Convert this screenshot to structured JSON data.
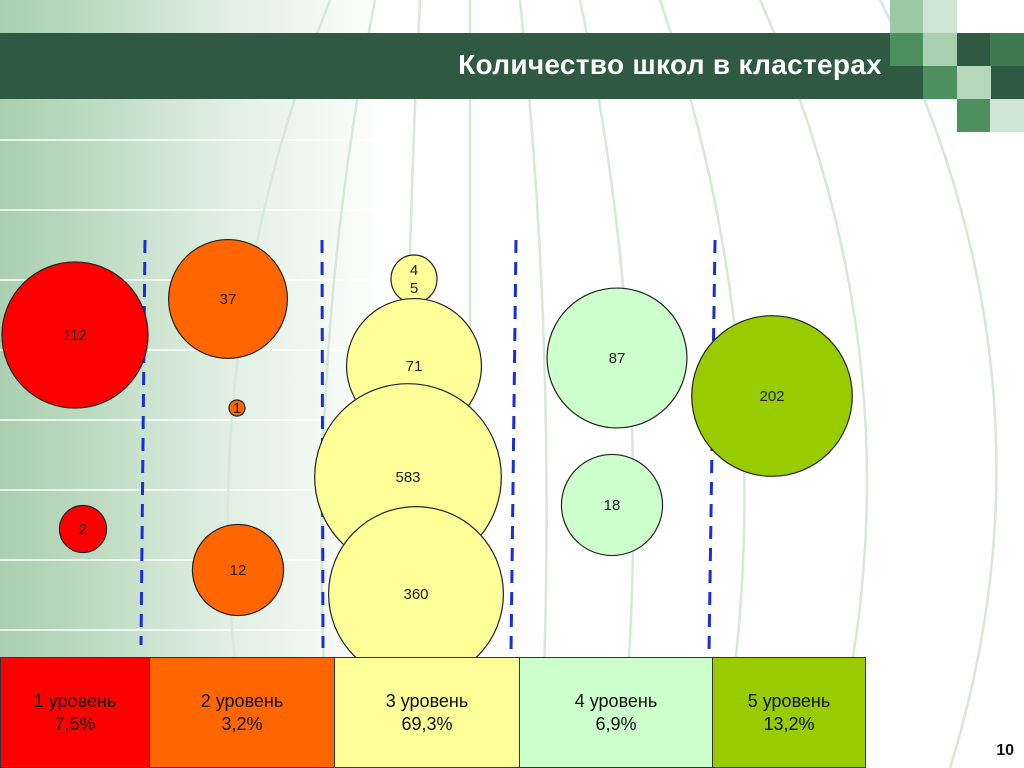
{
  "header": {
    "title": "Количество школ в кластерах",
    "bar_color": "#2f5a41"
  },
  "chart_data": {
    "type": "bubble",
    "title": "Количество школ в кластерах",
    "xlabel": "",
    "ylabel": "",
    "grid": false,
    "legend_position": "bottom",
    "levels": [
      {
        "label": "1 уровень",
        "percent": "7,5%",
        "color": "#ff0000"
      },
      {
        "label": "2 уровень",
        "percent": "3,2%",
        "color": "#ff6600"
      },
      {
        "label": "3 уровень",
        "percent": "69,3%",
        "color": "#ffff99"
      },
      {
        "label": "4 уровень",
        "percent": "6,9%",
        "color": "#ccffcc"
      },
      {
        "label": "5 уровень",
        "percent": "13,2%",
        "color": "#99cc00"
      }
    ],
    "bubbles": [
      {
        "level": 1,
        "value": 112,
        "label": "112"
      },
      {
        "level": 1,
        "value": 2,
        "label": "2"
      },
      {
        "level": 2,
        "value": 37,
        "label": "37"
      },
      {
        "level": 2,
        "value": 1,
        "label": "1"
      },
      {
        "level": 2,
        "value": 12,
        "label": "12"
      },
      {
        "level": 3,
        "value": 45,
        "label": "4\n5"
      },
      {
        "level": 3,
        "value": 71,
        "label": "71"
      },
      {
        "level": 3,
        "value": 583,
        "label": "583"
      },
      {
        "level": 3,
        "value": 360,
        "label": "360"
      },
      {
        "level": 4,
        "value": 87,
        "label": "87"
      },
      {
        "level": 4,
        "value": 18,
        "label": "18"
      },
      {
        "level": 5,
        "value": 202,
        "label": "202"
      }
    ]
  },
  "footer": {
    "page_number": "10"
  }
}
